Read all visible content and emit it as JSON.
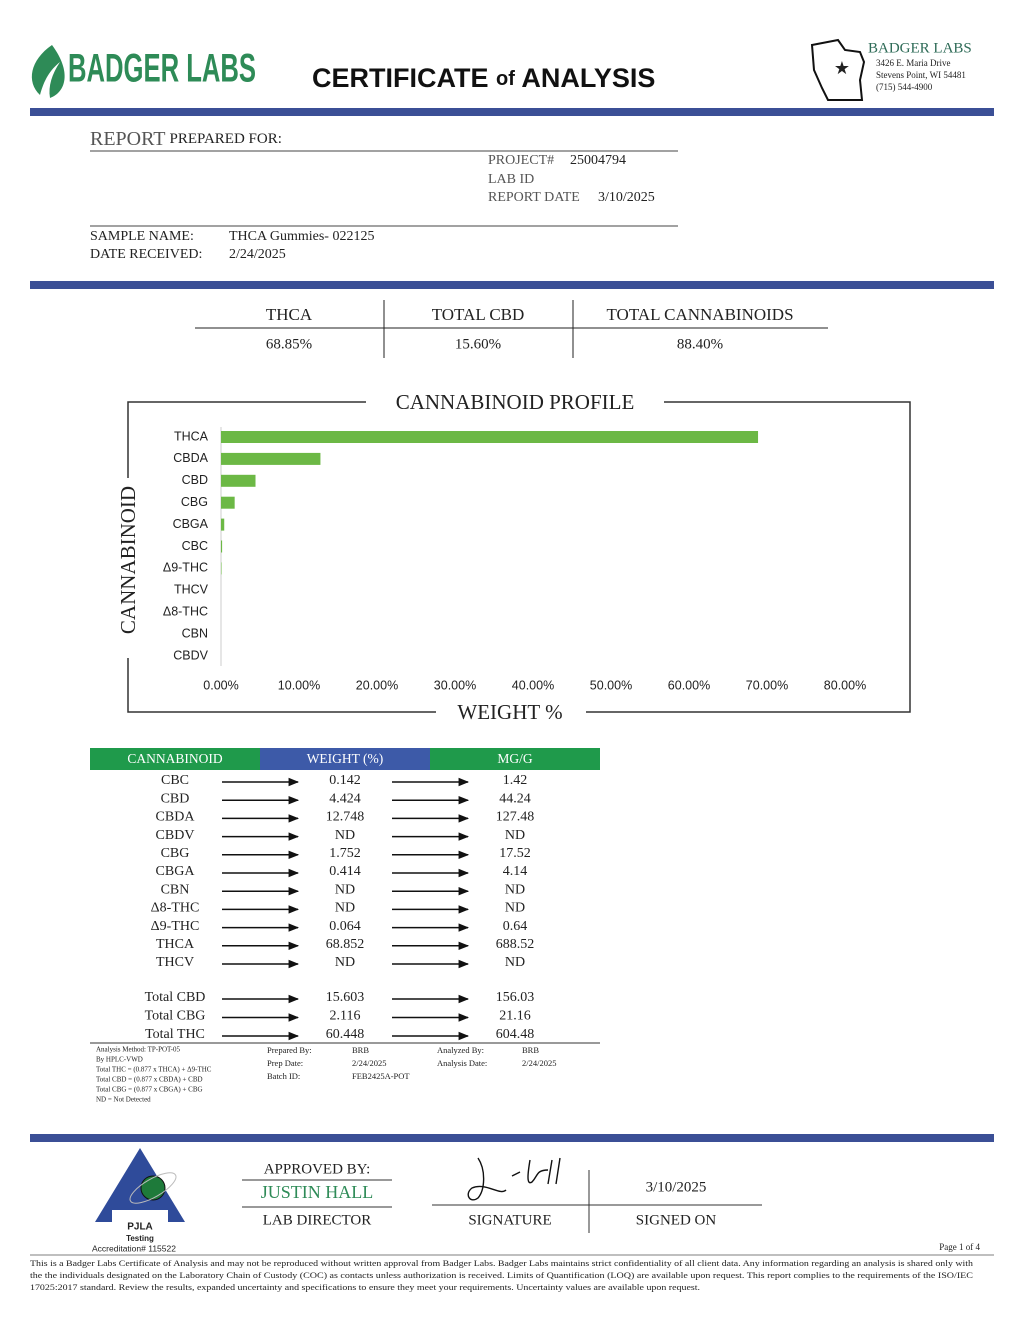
{
  "header": {
    "brand": "BADGER LABS",
    "title_a": "CERTIFICATE",
    "title_of": "of",
    "title_b": "ANALYSIS"
  },
  "address": {
    "name": "BADGER LABS",
    "street": "3426 E. Maria Drive",
    "city": "Stevens Point, WI 54481",
    "phone": "(715) 544-4900"
  },
  "report": {
    "heading": "REPORT",
    "heading_small": "PREPARED FOR:",
    "project_label": "PROJECT#",
    "project": "25004794",
    "lab_id_label": "LAB ID",
    "report_date_label": "REPORT DATE",
    "report_date": "3/10/2025",
    "sample_name_label": "SAMPLE NAME:",
    "sample_name": "THCA Gummies- 022125",
    "date_received_label": "DATE RECEIVED:",
    "date_received": "2/24/2025"
  },
  "summary": [
    {
      "label": "THCA",
      "value": "68.85%"
    },
    {
      "label": "TOTAL CBD",
      "value": "15.60%"
    },
    {
      "label": "TOTAL CANNABINOIDS",
      "value": "88.40%"
    }
  ],
  "chart_data": {
    "type": "bar",
    "orientation": "horizontal",
    "title": "CANNABINOID PROFILE",
    "x_label": "WEIGHT %",
    "y_label": "CANNABINOID",
    "categories": [
      "THCA",
      "CBDA",
      "CBD",
      "CBG",
      "CBGA",
      "CBC",
      "Δ9-THC",
      "THCV",
      "Δ8-THC",
      "CBN",
      "CBDV"
    ],
    "values": [
      68.852,
      12.748,
      4.424,
      1.752,
      0.414,
      0.142,
      0.064,
      null,
      null,
      null,
      null
    ],
    "color": "#6cb845",
    "xlim": [
      0,
      80
    ],
    "xticks": [
      {
        "value": 0,
        "label": "0.00%"
      },
      {
        "value": 10,
        "label": "10.00%"
      },
      {
        "value": 20,
        "label": "20.00%"
      },
      {
        "value": 30,
        "label": "30.00%"
      },
      {
        "value": 40,
        "label": "40.00%"
      },
      {
        "value": 50,
        "label": "50.00%"
      },
      {
        "value": 60,
        "label": "60.00%"
      },
      {
        "value": 70,
        "label": "70.00%"
      },
      {
        "value": 80,
        "label": "80.00%"
      }
    ],
    "grid": false
  },
  "table": {
    "headers": [
      "CANNABINOID",
      "WEIGHT (%)",
      "MG/G"
    ],
    "rows": [
      [
        "CBC",
        "0.142",
        "1.42"
      ],
      [
        "CBD",
        "4.424",
        "44.24"
      ],
      [
        "CBDA",
        "12.748",
        "127.48"
      ],
      [
        "CBDV",
        "ND",
        "ND"
      ],
      [
        "CBG",
        "1.752",
        "17.52"
      ],
      [
        "CBGA",
        "0.414",
        "4.14"
      ],
      [
        "CBN",
        "ND",
        "ND"
      ],
      [
        "Δ8-THC",
        "ND",
        "ND"
      ],
      [
        "Δ9-THC",
        "0.064",
        "0.64"
      ],
      [
        "THCA",
        "68.852",
        "688.52"
      ],
      [
        "THCV",
        "ND",
        "ND"
      ]
    ],
    "totals": [
      [
        "Total CBD",
        "15.603",
        "156.03"
      ],
      [
        "Total CBG",
        "2.116",
        "21.16"
      ],
      [
        "Total THC",
        "60.448",
        "604.48"
      ]
    ]
  },
  "notes": [
    "Analysis Method: TP-POT-05",
    "By HPLC-VWD",
    "Total THC = (0.877 x  THCA) + Δ9-THC",
    "Total CBD = (0.877 x  CBDA) + CBD",
    "Total CBG = (0.877 x  CBGA) + CBG",
    "ND = Not Detected"
  ],
  "prep": {
    "prepared_by_label": "Prepared By:",
    "prepared_by": "BRB",
    "prep_date_label": "Prep Date:",
    "prep_date": "2/24/2025",
    "batch_id_label": "Batch ID:",
    "batch_id": "FEB2425A-POT",
    "analyzed_by_label": "Analyzed By:",
    "analyzed_by": "BRB",
    "analysis_date_label": "Analysis Date:",
    "analysis_date": "2/24/2025"
  },
  "approval": {
    "approved_by": "APPROVED BY:",
    "name": "JUSTIN HALL",
    "role": "LAB DIRECTOR",
    "signature_label": "SIGNATURE",
    "signed_on": "3/10/2025",
    "signed_on_label": "SIGNED ON"
  },
  "pjla": {
    "name": "PJLA",
    "sub": "Testing",
    "accreditation": "Accreditation# 115522"
  },
  "footer": {
    "page": "Page 1 of 4",
    "disclaimer": [
      "This is a Badger Labs Certificate of Analysis and may not be reproduced without written approval from Badger Labs. Badger Labs maintains strict confidentiality of all client data. Any information regarding an analysis is shared only with",
      "the the individuals designated on the Laboratory Chain of Custody (COC) as contacts unless authorization is received. Limits of Quantification (LOQ) are available upon request. This report complies to the requirements of the ISO/IEC",
      "17025:2017 standard. Review the results, expanded uncertainty and specifications to ensure they meet your requirements. Uncertainty values are available upon request."
    ]
  }
}
